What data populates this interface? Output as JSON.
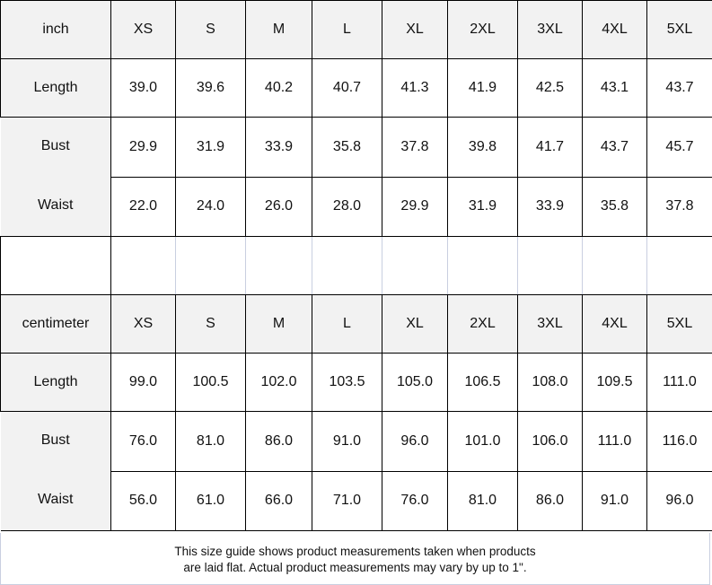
{
  "sizes": [
    "XS",
    "S",
    "M",
    "L",
    "XL",
    "2XL",
    "3XL",
    "4XL",
    "5XL"
  ],
  "tables": [
    {
      "unit": "inch",
      "rows": [
        {
          "label": "Length",
          "values": [
            "39.0",
            "39.6",
            "40.2",
            "40.7",
            "41.3",
            "41.9",
            "42.5",
            "43.1",
            "43.7"
          ]
        },
        {
          "label": "Bust",
          "values": [
            "29.9",
            "31.9",
            "33.9",
            "35.8",
            "37.8",
            "39.8",
            "41.7",
            "43.7",
            "45.7"
          ]
        },
        {
          "label": "Waist",
          "values": [
            "22.0",
            "24.0",
            "26.0",
            "28.0",
            "29.9",
            "31.9",
            "33.9",
            "35.8",
            "37.8"
          ]
        }
      ]
    },
    {
      "unit": "centimeter",
      "rows": [
        {
          "label": "Length",
          "values": [
            "99.0",
            "100.5",
            "102.0",
            "103.5",
            "105.0",
            "106.5",
            "108.0",
            "109.5",
            "111.0"
          ]
        },
        {
          "label": "Bust",
          "values": [
            "76.0",
            "81.0",
            "86.0",
            "91.0",
            "96.0",
            "101.0",
            "106.0",
            "111.0",
            "116.0"
          ]
        },
        {
          "label": "Waist",
          "values": [
            "56.0",
            "61.0",
            "66.0",
            "71.0",
            "76.0",
            "81.0",
            "86.0",
            "91.0",
            "96.0"
          ]
        }
      ]
    }
  ],
  "footer": {
    "line1": "This size guide shows product measurements taken when products",
    "line2": "are laid flat. Actual product measurements may vary by up to 1\"."
  }
}
